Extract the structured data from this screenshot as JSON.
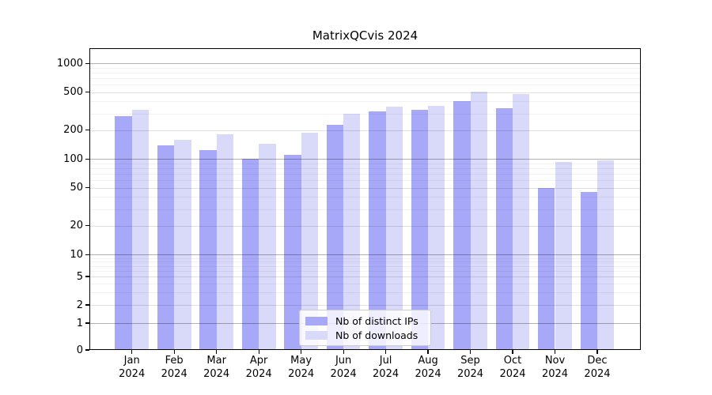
{
  "chart_data": {
    "type": "bar",
    "title": "MatrixQCvis 2024",
    "categories": [
      "Jan",
      "Feb",
      "Mar",
      "Apr",
      "May",
      "Jun",
      "Jul",
      "Aug",
      "Sep",
      "Oct",
      "Nov",
      "Dec"
    ],
    "x_year_label": "2024",
    "series": [
      {
        "name": "Nb of distinct IPs",
        "color": "#a8a8f8",
        "values": [
          280,
          140,
          125,
          100,
          110,
          230,
          315,
          325,
          400,
          340,
          50,
          45
        ]
      },
      {
        "name": "Nb of downloads",
        "color": "#d9d9f9",
        "values": [
          330,
          160,
          180,
          145,
          190,
          300,
          350,
          360,
          510,
          480,
          93,
          97
        ]
      }
    ],
    "yscale": "symlog",
    "yticks": [
      0,
      1,
      2,
      5,
      10,
      20,
      50,
      100,
      200,
      500,
      1000
    ],
    "yminor_gridlines": [
      3,
      4,
      6,
      7,
      8,
      9,
      30,
      40,
      60,
      70,
      80,
      90,
      300,
      400,
      600,
      700,
      800,
      900
    ],
    "ylim": [
      0,
      1400
    ],
    "grid": "horizontal gridlines drawn over bars",
    "legend_position": "lower center inside plot"
  }
}
